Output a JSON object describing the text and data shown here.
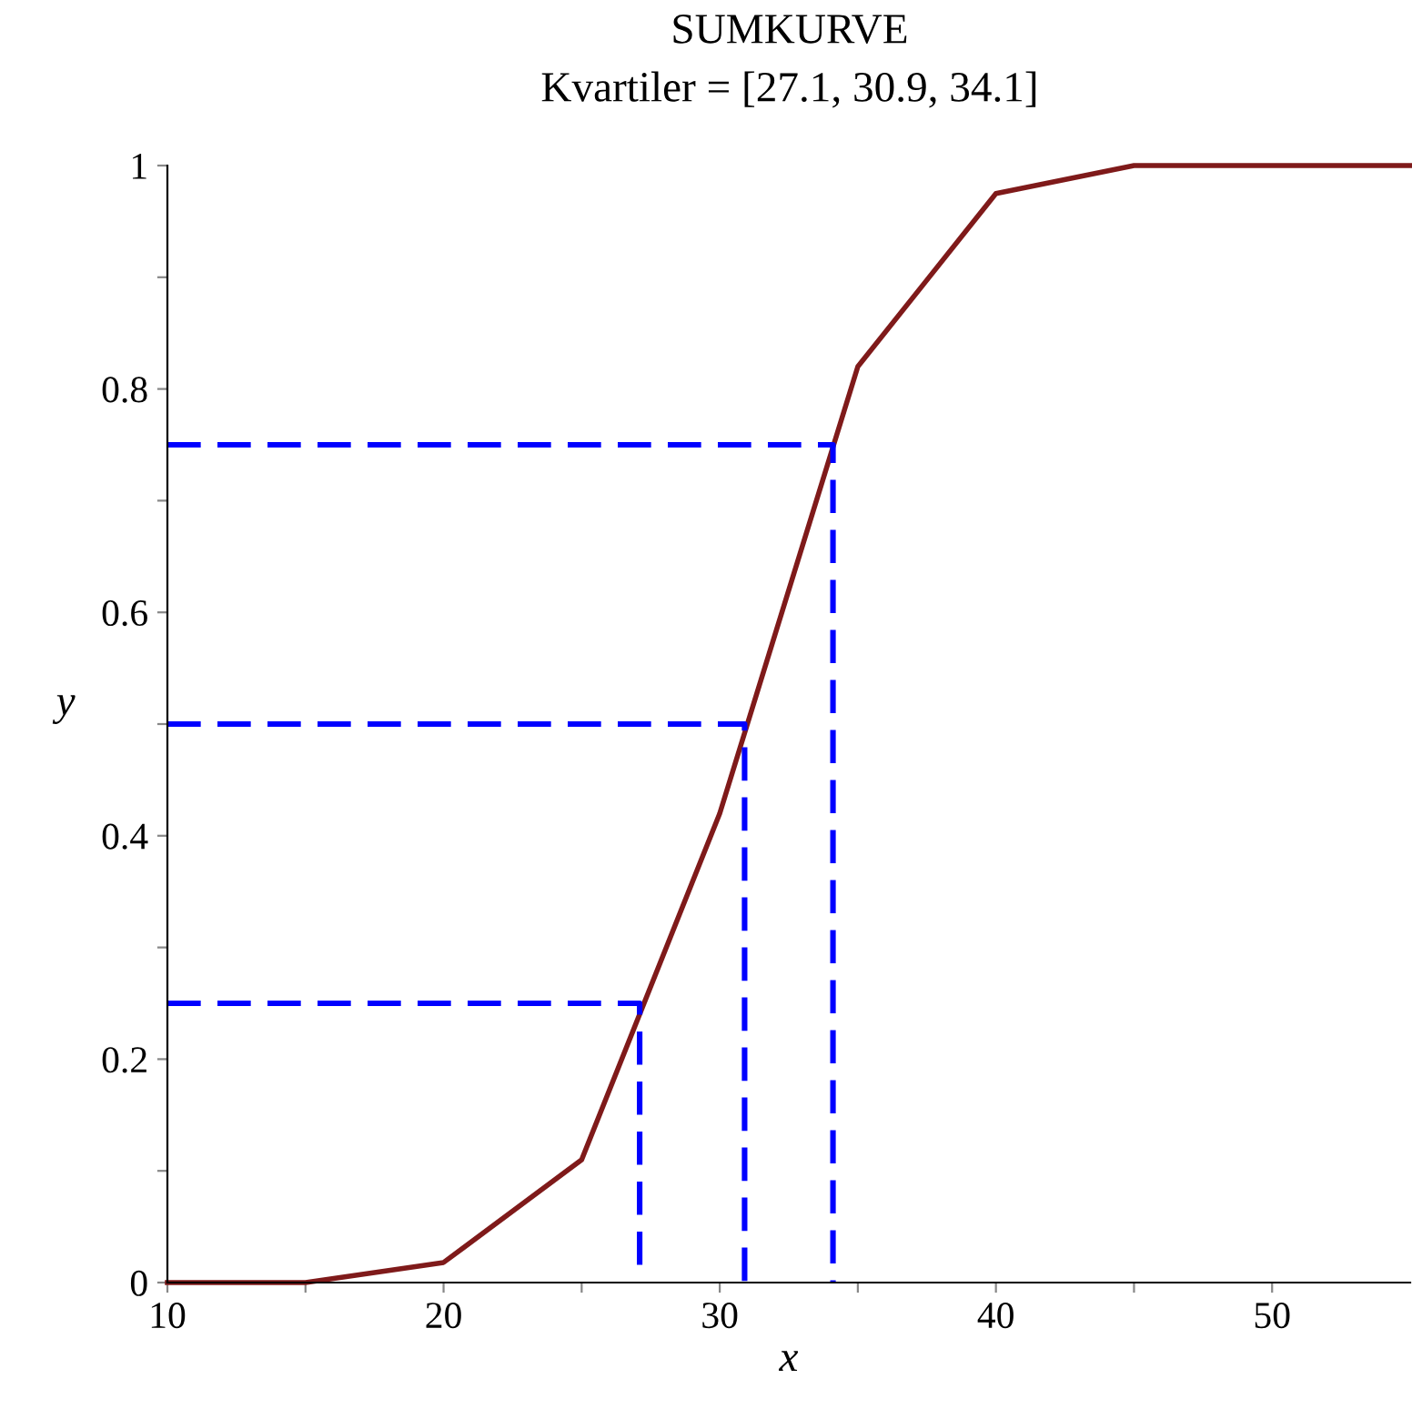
{
  "chart_data": {
    "type": "line",
    "title": "SUMKURVE",
    "subtitle": "Kvartiler = [27.1, 30.9, 34.1]",
    "xlabel": "x",
    "ylabel": "y",
    "xlim": [
      10,
      55
    ],
    "ylim": [
      0,
      1
    ],
    "xticks": [
      10,
      {
        "value": 15,
        "label": null
      },
      20,
      {
        "value": 25,
        "label": null
      },
      30,
      {
        "value": 35,
        "label": null
      },
      40,
      {
        "value": 45,
        "label": null
      },
      50
    ],
    "yticks": [
      0,
      {
        "value": 0.1,
        "label": null
      },
      0.2,
      {
        "value": 0.3,
        "label": null
      },
      0.4,
      {
        "value": 0.5,
        "label": null
      },
      0.6,
      {
        "value": 0.7,
        "label": null
      },
      0.8,
      {
        "value": 0.9,
        "label": null
      },
      1
    ],
    "grid": false,
    "legend": false,
    "series": [
      {
        "color": "#7f1a1a",
        "line_style": "solid",
        "x": [
          10,
          15,
          20,
          25,
          30,
          35,
          40,
          45,
          55
        ],
        "values": [
          0,
          0,
          0.018,
          0.11,
          0.42,
          0.82,
          0.975,
          1,
          1
        ]
      },
      {
        "color": "#0000ff",
        "line_style": "dashed",
        "x": [
          10,
          27.1,
          27.1
        ],
        "values": [
          0.25,
          0.25,
          0
        ]
      },
      {
        "color": "#0000ff",
        "line_style": "dashed",
        "x": [
          10,
          30.9,
          30.9
        ],
        "values": [
          0.5,
          0.5,
          0
        ]
      },
      {
        "color": "#0000ff",
        "line_style": "dashed",
        "x": [
          10,
          34.1,
          34.1
        ],
        "values": [
          0.75,
          0.75,
          0
        ]
      }
    ]
  }
}
